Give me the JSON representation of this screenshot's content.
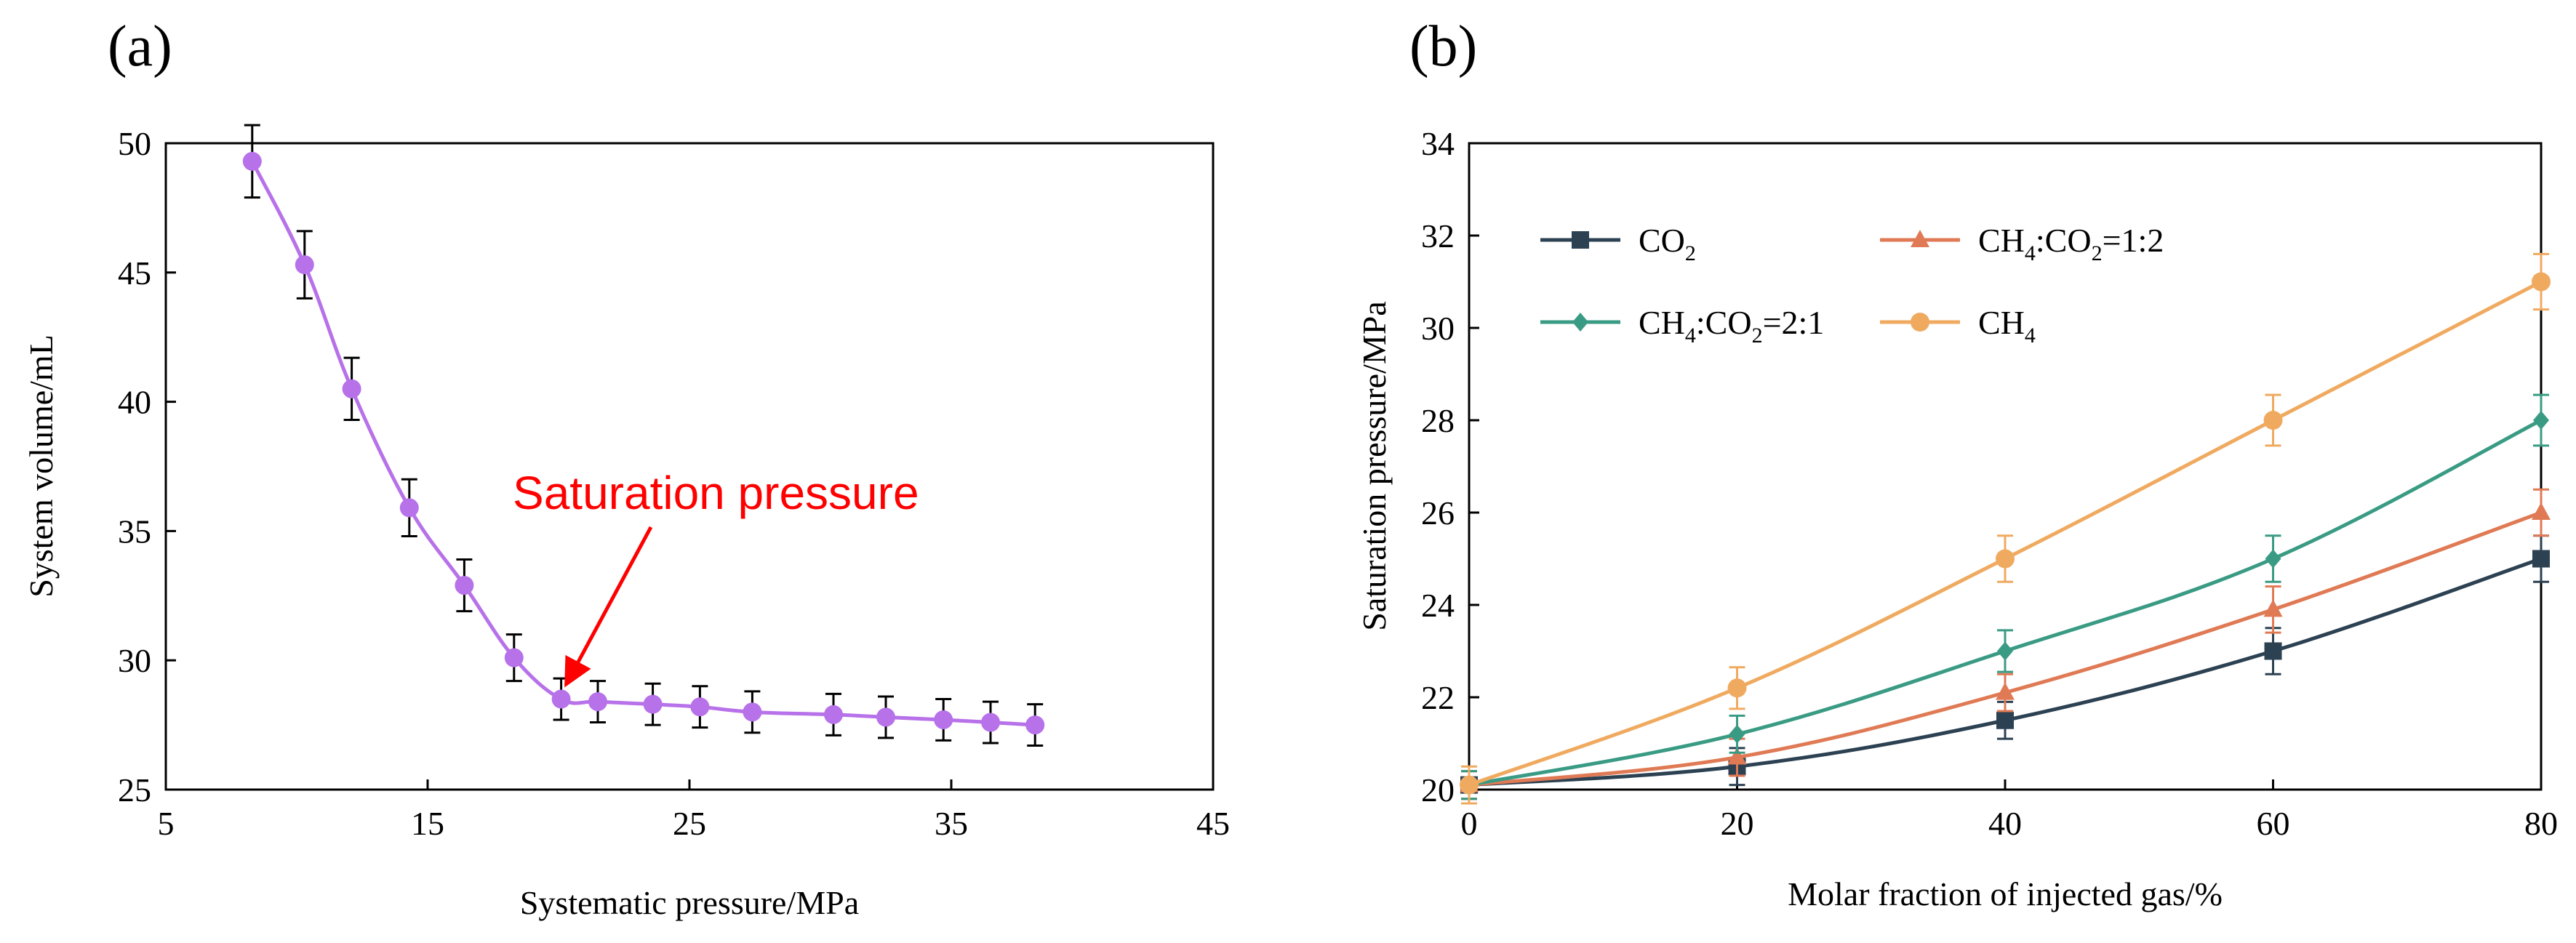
{
  "chart_data": [
    {
      "type": "line",
      "panel_label": "(a)",
      "xlabel": "Systematic pressure/MPa",
      "ylabel": "System volume/mL",
      "xlim": [
        5,
        45
      ],
      "ylim": [
        25,
        50
      ],
      "x_ticks": [
        5,
        15,
        25,
        35,
        45
      ],
      "y_ticks": [
        25,
        30,
        35,
        40,
        45,
        50
      ],
      "grid": false,
      "annotation": {
        "text": "Saturation pressure",
        "color": "#ff0000",
        "points_to": [
          20.1,
          28.5
        ]
      },
      "series": [
        {
          "name": "System volume",
          "color": "#b771e9",
          "marker": "circle",
          "x": [
            8.3,
            10.3,
            12.1,
            14.3,
            16.4,
            18.3,
            20.1,
            21.5,
            23.6,
            25.4,
            27.4,
            30.5,
            32.5,
            34.7,
            36.5,
            38.2
          ],
          "y": [
            49.3,
            45.3,
            40.5,
            35.9,
            32.9,
            30.1,
            28.5,
            28.4,
            28.3,
            28.2,
            28.0,
            27.9,
            27.8,
            27.7,
            27.6,
            27.5
          ],
          "err": [
            1.4,
            1.3,
            1.2,
            1.1,
            1.0,
            0.9,
            0.8,
            0.8,
            0.8,
            0.8,
            0.8,
            0.8,
            0.8,
            0.8,
            0.8,
            0.8
          ]
        }
      ]
    },
    {
      "type": "line",
      "panel_label": "(b)",
      "xlabel": "Molar fraction of injected gas/%",
      "ylabel": "Saturation pressure/MPa",
      "xlim": [
        0,
        80
      ],
      "ylim": [
        20,
        34
      ],
      "x_ticks": [
        0,
        20,
        40,
        60,
        80
      ],
      "y_ticks": [
        20,
        22,
        24,
        26,
        28,
        30,
        32,
        34
      ],
      "grid": false,
      "legend_position": "top-left, inside",
      "series": [
        {
          "name_main": "CO",
          "name_sub": "2",
          "name": "CO2",
          "color": "#2c4152",
          "marker": "square",
          "x": [
            0,
            20,
            40,
            60,
            80
          ],
          "y": [
            20.1,
            20.5,
            21.5,
            23.0,
            25.0
          ],
          "err": [
            0.3,
            0.4,
            0.4,
            0.5,
            0.5
          ]
        },
        {
          "name_main": "CH",
          "name_sub": "4",
          "name_rest": ":CO",
          "name_sub2": "2",
          "name_tail": "=1:2",
          "name": "CH4:CO2=1:2",
          "color": "#e07a55",
          "marker": "triangle",
          "x": [
            0,
            20,
            40,
            60,
            80
          ],
          "y": [
            20.1,
            20.7,
            22.1,
            23.9,
            26.0
          ],
          "err": [
            0.3,
            0.4,
            0.4,
            0.5,
            0.5
          ]
        },
        {
          "name_main": "CH",
          "name_sub": "4",
          "name_rest": ":CO",
          "name_sub2": "2",
          "name_tail": "=2:1",
          "name": "CH4:CO2=2:1",
          "color": "#3a9b84",
          "marker": "diamond",
          "x": [
            0,
            20,
            40,
            60,
            80
          ],
          "y": [
            20.1,
            21.2,
            23.0,
            25.0,
            28.0
          ],
          "err": [
            0.3,
            0.4,
            0.45,
            0.5,
            0.55
          ]
        },
        {
          "name_main": "CH",
          "name_sub": "4",
          "name": "CH4",
          "color": "#f0aa60",
          "marker": "circle",
          "x": [
            0,
            20,
            40,
            60,
            80
          ],
          "y": [
            20.1,
            22.2,
            25.0,
            28.0,
            31.0
          ],
          "err": [
            0.4,
            0.45,
            0.5,
            0.55,
            0.6
          ]
        }
      ]
    }
  ]
}
